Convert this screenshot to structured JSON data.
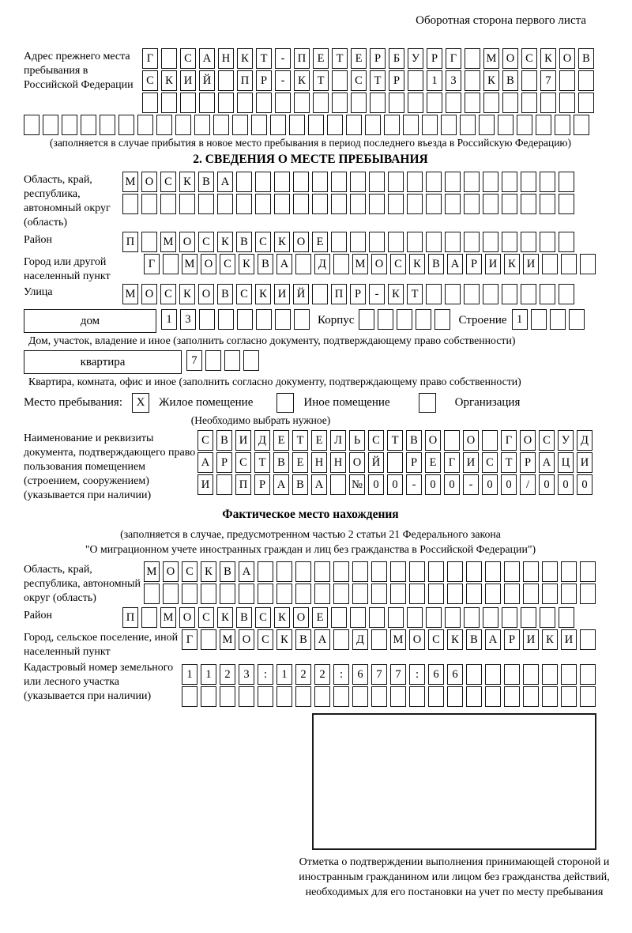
{
  "header": {
    "note": "Оборотная сторона первого листа"
  },
  "prev_address": {
    "label": "Адрес прежнего места пребывания в Российской Федерации",
    "rows": [
      {
        "text": "Г САНКТ-ПЕТЕРБУРГ МОСКОВ",
        "len": 24
      },
      {
        "text": "СКИЙ ПР-КТ СТР 13 КВ 7",
        "len": 24
      },
      {
        "text": "",
        "len": 24
      }
    ],
    "overflow_row": {
      "text": "",
      "len": 30
    },
    "caption": "(заполняется в случае прибытия в новое место пребывания в период последнего въезда в Российскую Федерацию)"
  },
  "stay_section": {
    "title": "2. СВЕДЕНИЯ О МЕСТЕ ПРЕБЫВАНИЯ",
    "oblast_label": "Область, край, республика, автономный округ (область)",
    "oblast_rows": [
      {
        "text": "МОСКВА",
        "len": 24
      },
      {
        "text": "",
        "len": 24
      }
    ],
    "raion_label": "Район",
    "raion_row": {
      "text": "П МОСКВСКОЕ",
      "len": 24
    },
    "gorod_label": "Город или другой населенный пункт",
    "gorod_row": {
      "text": "Г МОСКВА Д МОСКВАРИКИ",
      "len": 24
    },
    "ulitsa_label": "Улица",
    "ulitsa_row": {
      "text": "МОСКОВСКИЙ ПР-КТ",
      "len": 24
    },
    "dom_label": "дом",
    "dom_row": {
      "text": "13",
      "len": 8
    },
    "korpus_label": "Корпус",
    "korpus_row": {
      "text": "",
      "len": 5
    },
    "stroenie_label": "Строение",
    "stroenie_row": {
      "text": "1",
      "len": 4
    },
    "dom_caption": "Дом, участок, владение и иное (заполнить согласно документу, подтверждающему право собственности)",
    "kvartira_label": "квартира",
    "kvartira_row": {
      "text": "7",
      "len": 4
    },
    "kvartira_caption": "Квартира, комната, офис и иное (заполнить согласно документу, подтверждающему право собственности)",
    "type_label": "Место пребывания:",
    "type_options": [
      {
        "label": "Жилое помещение",
        "checked": "X"
      },
      {
        "label": "Иное помещение",
        "checked": ""
      },
      {
        "label": "Организация",
        "checked": ""
      }
    ],
    "type_note": "(Необходимо выбрать нужное)",
    "doc_label": "Наименование и реквизиты документа, подтверждающего право пользования помещением (строением, сооружением) (указывается при наличии)",
    "doc_rows": [
      {
        "text": "СВИДЕТЕЛЬСТВО О ГОСУД",
        "len": 21
      },
      {
        "text": "АРСТВЕННОЙ РЕГИСТРАЦИ",
        "len": 21
      },
      {
        "text": "И ПРАВА №00-00-00/000",
        "len": 21
      }
    ]
  },
  "fact_section": {
    "title": "Фактическое место нахождения",
    "note_line1": "(заполняется в случае, предусмотренном частью 2 статьи 21 Федерального закона",
    "note_line2": "\"О миграционном учете иностранных граждан и лиц без гражданства в Российской Федерации\")",
    "oblast_label": "Область, край, республика, автономный округ (область)",
    "oblast_rows": [
      {
        "text": "МОСКВА",
        "len": 24
      },
      {
        "text": "",
        "len": 24
      }
    ],
    "raion_label": "Район",
    "raion_row": {
      "text": "П МОСКВСКОЕ",
      "len": 24
    },
    "gorod_label": "Город, сельское поселение, иной населенный пункт",
    "gorod_row": {
      "text": "Г МОСКВА Д МОСКВАРИКИ",
      "len": 22
    },
    "kadastr_label": "Кадастровый номер земельного или лесного участка (указывается при наличии)",
    "kadastr_rows": [
      {
        "text": "1123:122:677:66",
        "len": 22
      },
      {
        "text": "",
        "len": 22
      }
    ]
  },
  "confirmation": {
    "caption": "Отметка о подтверждении выполнения принимающей стороной и иностранным гражданином или лицом без гражданства действий, необходимых для его постановки на учет по месту пребывания"
  }
}
